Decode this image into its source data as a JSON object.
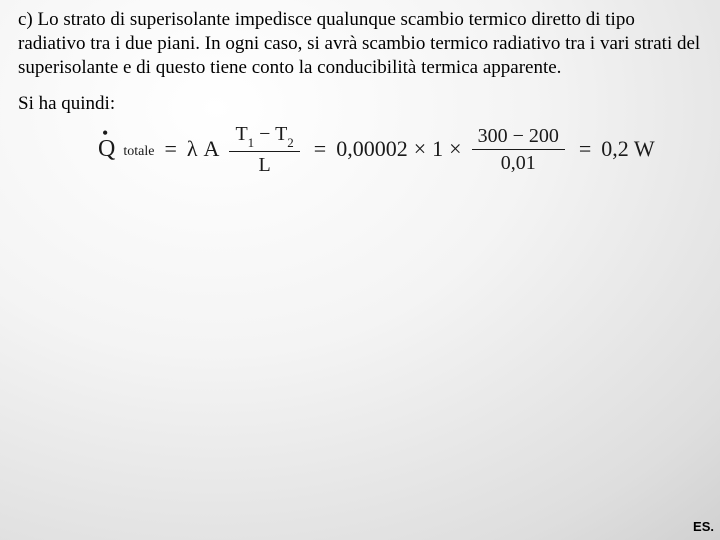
{
  "paragraph": "c) Lo strato di superisolante impedisce qualunque scambio termico diretto di tipo radiativo tra i due piani. In ogni caso, si avrà scambio termico radiativo tra i vari strati del superisolante e di questo tiene conto la conducibilità termica apparente.",
  "lead": "Si ha quindi:",
  "equation": {
    "Q_label": "Q",
    "Q_sub": "totale",
    "eq1": "=",
    "lambda": "λ",
    "A": "A",
    "frac1_num_T1": "T",
    "frac1_num_sub1": "1",
    "frac1_num_minus": "−",
    "frac1_num_T2": "T",
    "frac1_num_sub2": "2",
    "frac1_den": "L",
    "eq2": "=",
    "val_lambda": "0,00002",
    "times1": "×",
    "val_A": "1",
    "times2": "×",
    "frac2_num": "300 − 200",
    "frac2_den": "0,01",
    "eq3": "=",
    "result": "0,2 W"
  },
  "footer": "ES."
}
